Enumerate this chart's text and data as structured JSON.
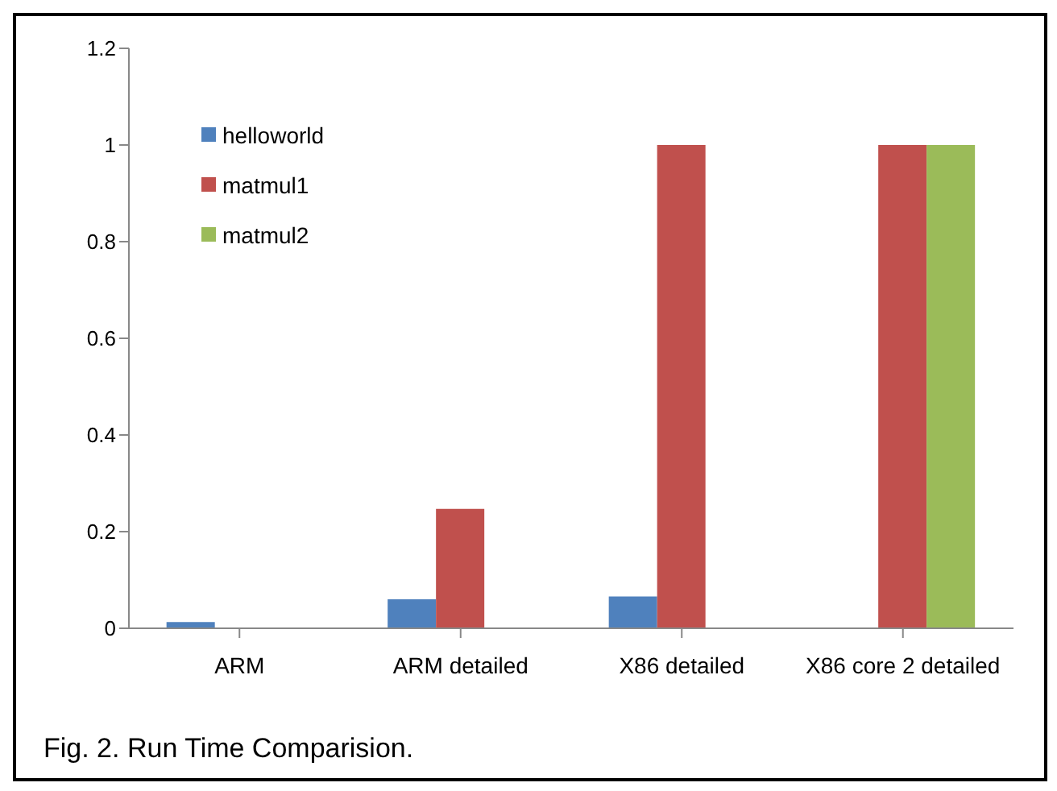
{
  "chart_data": {
    "type": "bar",
    "categories": [
      "ARM",
      "ARM detailed",
      "X86 detailed",
      "X86 core 2 detailed"
    ],
    "series": [
      {
        "name": "helloworld",
        "color": "#4f81bd",
        "values": [
          0.013,
          0.06,
          0.066,
          null
        ]
      },
      {
        "name": "matmul1",
        "color": "#c0504d",
        "values": [
          null,
          0.247,
          1.0,
          1.0
        ]
      },
      {
        "name": "matmul2",
        "color": "#9bbb59",
        "values": [
          null,
          null,
          null,
          1.0
        ]
      }
    ],
    "ylim": [
      0,
      1.2
    ],
    "yticks": [
      0,
      0.2,
      0.4,
      0.6,
      0.8,
      1,
      1.2
    ],
    "grid": false,
    "legend": "top left",
    "annotations": [
      "Fig. 2. Run Time Comparision."
    ]
  }
}
